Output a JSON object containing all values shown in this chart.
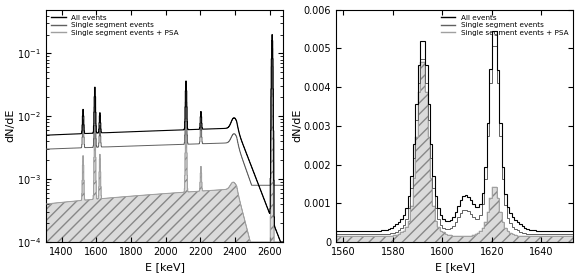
{
  "left_panel": {
    "xlim": [
      1310,
      2680
    ],
    "ylim_log": [
      0.0001,
      0.5
    ],
    "xlabel": "E [keV]",
    "ylabel": "dN/dE",
    "xticks": [
      1400,
      1600,
      1800,
      2000,
      2200,
      2400,
      2600
    ],
    "legend_labels": [
      "All events",
      "Single segment events",
      "Single segment events + PSA"
    ],
    "line_colors": [
      "#000000",
      "#606060",
      "#a0a0a0"
    ],
    "hatch": "///"
  },
  "right_panel": {
    "xlim": [
      1557,
      1653
    ],
    "ylim": [
      0,
      0.006
    ],
    "xlabel": "E [keV]",
    "ylabel": "dN/dE",
    "xticks": [
      1560,
      1580,
      1600,
      1620,
      1640
    ],
    "yticks": [
      0,
      0.001,
      0.002,
      0.003,
      0.004,
      0.005,
      0.006
    ],
    "ytick_labels": [
      "0",
      "0.001",
      "0.002",
      "0.003",
      "0.004",
      "0.005",
      "0.006"
    ],
    "legend_labels": [
      "All events",
      "Single segment events",
      "Single segment events + PSA"
    ],
    "line_colors": [
      "#000000",
      "#606060",
      "#a0a0a0"
    ],
    "hatch": "///"
  }
}
